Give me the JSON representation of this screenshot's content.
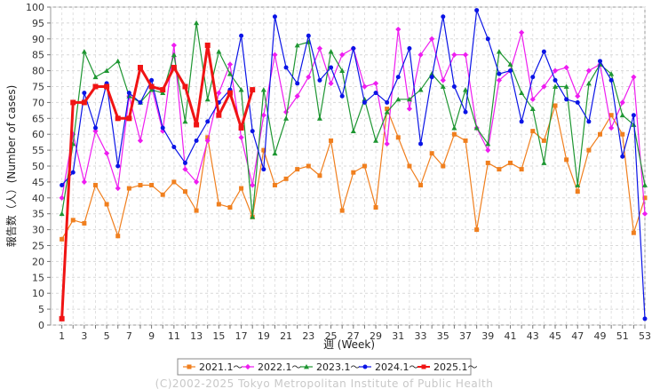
{
  "chart_data": {
    "type": "line",
    "title": "",
    "xlabel": "週 (Week)",
    "ylabel": "報告数（人）(Number of cases)",
    "xlim": [
      0,
      53
    ],
    "ylim": [
      0,
      100
    ],
    "x_ticks": [
      1,
      3,
      5,
      7,
      9,
      11,
      13,
      15,
      17,
      19,
      21,
      23,
      25,
      27,
      29,
      31,
      33,
      35,
      37,
      39,
      41,
      43,
      45,
      47,
      49,
      51,
      53
    ],
    "x_tick_labels": [
      "1",
      "3",
      "5",
      "7",
      "9",
      "11",
      "13",
      "15",
      "17",
      "19",
      "21",
      "23",
      "25",
      "27",
      "29",
      "31",
      "33",
      "35",
      "37",
      "39",
      "41",
      "43",
      "45",
      "47",
      "49",
      "51",
      "53"
    ],
    "y_ticks": [
      0,
      5,
      10,
      15,
      20,
      25,
      30,
      35,
      40,
      45,
      50,
      55,
      60,
      65,
      70,
      75,
      80,
      85,
      90,
      95,
      100
    ],
    "grid": true,
    "legend_position": "bottom",
    "series": [
      {
        "name": "2021.1～",
        "color": "#f07f1e",
        "marker": "square",
        "line_width": 1.2,
        "values": [
          27,
          33,
          32,
          44,
          38,
          28,
          43,
          44,
          44,
          41,
          45,
          42,
          36,
          59,
          38,
          37,
          43,
          34,
          55,
          44,
          46,
          49,
          50,
          47,
          58,
          36,
          48,
          50,
          37,
          68,
          59,
          50,
          44,
          54,
          50,
          60,
          58,
          30,
          51,
          49,
          51,
          49,
          61,
          58,
          69,
          52,
          42,
          55,
          60,
          66,
          60,
          29,
          40
        ]
      },
      {
        "name": "2022.1～",
        "color": "#ee1cf0",
        "marker": "diamond",
        "line_width": 1.2,
        "values": [
          40,
          60,
          45,
          61,
          54,
          43,
          72,
          58,
          75,
          61,
          88,
          49,
          45,
          58,
          73,
          82,
          59,
          44,
          66,
          85,
          67,
          72,
          78,
          87,
          76,
          85,
          87,
          75,
          76,
          57,
          93,
          68,
          85,
          90,
          77,
          85,
          85,
          62,
          55,
          77,
          80,
          92,
          71,
          75,
          80,
          81,
          72,
          80,
          82,
          62,
          70,
          78,
          35
        ]
      },
      {
        "name": "2023.1～",
        "color": "#1e9632",
        "marker": "triangle",
        "line_width": 1.2,
        "values": [
          35,
          57,
          86,
          78,
          80,
          83,
          72,
          70,
          74,
          73,
          85,
          64,
          95,
          71,
          86,
          79,
          74,
          34,
          74,
          54,
          65,
          88,
          89,
          65,
          86,
          80,
          61,
          71,
          58,
          67,
          71,
          71,
          74,
          79,
          75,
          62,
          74,
          62,
          57,
          86,
          82,
          73,
          68,
          51,
          75,
          75,
          44,
          76,
          82,
          79,
          66,
          63,
          44
        ]
      },
      {
        "name": "2024.1～",
        "color": "#0a14e6",
        "marker": "circle",
        "line_width": 1.2,
        "values": [
          44,
          48,
          73,
          62,
          76,
          50,
          73,
          70,
          77,
          62,
          56,
          51,
          58,
          64,
          70,
          74,
          91,
          61,
          49,
          97,
          81,
          76,
          91,
          77,
          81,
          72,
          87,
          70,
          73,
          70,
          78,
          87,
          57,
          78,
          97,
          75,
          67,
          99,
          90,
          79,
          80,
          64,
          78,
          86,
          77,
          71,
          70,
          64,
          83,
          77,
          53,
          66,
          2
        ]
      },
      {
        "name": "2025.1～",
        "color": "#f01414",
        "marker": "square",
        "line_width": 3,
        "values": [
          2,
          70,
          70,
          75,
          75,
          65,
          65,
          81,
          75,
          74,
          81,
          75,
          63,
          88,
          66,
          73,
          62,
          74
        ]
      }
    ]
  },
  "credit": "(C)2002-2025 Tokyo Metropolitan Institute of Public Health"
}
